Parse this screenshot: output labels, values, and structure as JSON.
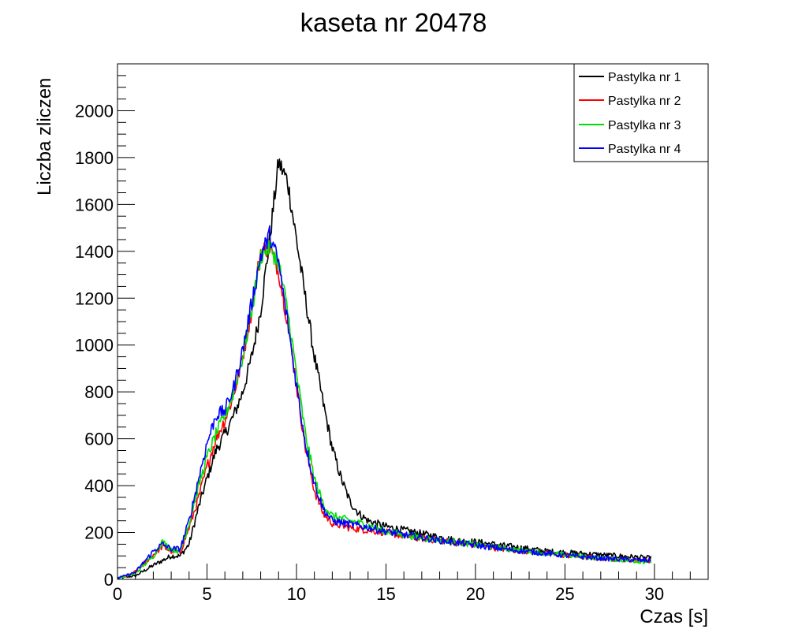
{
  "chart_data": {
    "type": "line",
    "title": "kaseta nr 20478",
    "xlabel": "Czas [s]",
    "ylabel": "Liczba zliczen",
    "xlim": [
      0,
      33
    ],
    "ylim": [
      0,
      2200
    ],
    "x_ticks": [
      0,
      5,
      10,
      15,
      20,
      25,
      30
    ],
    "y_ticks": [
      0,
      200,
      400,
      600,
      800,
      1000,
      1200,
      1400,
      1600,
      1800,
      2000
    ],
    "x_minor_step": 1,
    "y_minor_step": 50,
    "grid": false,
    "legend_position": "top-right",
    "series": [
      {
        "name": "Pastylka nr 1",
        "color": "#000000",
        "points": [
          [
            0,
            5
          ],
          [
            1,
            15
          ],
          [
            2,
            60
          ],
          [
            3,
            100
          ],
          [
            3.5,
            100
          ],
          [
            4,
            150
          ],
          [
            4.5,
            300
          ],
          [
            5,
            430
          ],
          [
            5.5,
            550
          ],
          [
            6,
            620
          ],
          [
            6.5,
            700
          ],
          [
            7,
            800
          ],
          [
            7.5,
            950
          ],
          [
            8,
            1150
          ],
          [
            8.5,
            1450
          ],
          [
            9,
            1780
          ],
          [
            9.5,
            1700
          ],
          [
            10,
            1450
          ],
          [
            10.5,
            1200
          ],
          [
            11,
            950
          ],
          [
            11.5,
            750
          ],
          [
            12,
            560
          ],
          [
            12.5,
            430
          ],
          [
            13,
            330
          ],
          [
            13.5,
            280
          ],
          [
            14,
            250
          ],
          [
            15,
            225
          ],
          [
            16,
            210
          ],
          [
            17,
            195
          ],
          [
            18,
            180
          ],
          [
            19,
            165
          ],
          [
            20,
            160
          ],
          [
            21,
            150
          ],
          [
            22,
            140
          ],
          [
            23,
            130
          ],
          [
            24,
            120
          ],
          [
            25,
            115
          ],
          [
            26,
            110
          ],
          [
            27,
            105
          ],
          [
            28,
            100
          ],
          [
            29,
            95
          ],
          [
            29.8,
            90
          ]
        ]
      },
      {
        "name": "Pastylka nr 2",
        "color": "#ff0000",
        "points": [
          [
            0,
            5
          ],
          [
            0.8,
            20
          ],
          [
            1.5,
            70
          ],
          [
            2.5,
            140
          ],
          [
            3,
            120
          ],
          [
            3.5,
            115
          ],
          [
            4,
            220
          ],
          [
            4.5,
            340
          ],
          [
            5,
            480
          ],
          [
            5.5,
            600
          ],
          [
            6,
            680
          ],
          [
            6.5,
            790
          ],
          [
            7,
            950
          ],
          [
            7.5,
            1150
          ],
          [
            8,
            1400
          ],
          [
            8.5,
            1420
          ],
          [
            9,
            1320
          ],
          [
            9.5,
            1100
          ],
          [
            10,
            830
          ],
          [
            10.5,
            560
          ],
          [
            11,
            380
          ],
          [
            11.5,
            280
          ],
          [
            12,
            240
          ],
          [
            13,
            220
          ],
          [
            14,
            210
          ],
          [
            15,
            200
          ],
          [
            16,
            185
          ],
          [
            17,
            175
          ],
          [
            18,
            165
          ],
          [
            19,
            155
          ],
          [
            20,
            145
          ],
          [
            21,
            135
          ],
          [
            22,
            125
          ],
          [
            23,
            118
          ],
          [
            24,
            110
          ],
          [
            25,
            102
          ],
          [
            26,
            95
          ],
          [
            27,
            90
          ],
          [
            28,
            85
          ],
          [
            29,
            82
          ],
          [
            29.8,
            80
          ]
        ]
      },
      {
        "name": "Pastylka nr 3",
        "color": "#00e000",
        "points": [
          [
            0,
            5
          ],
          [
            1,
            25
          ],
          [
            2,
            100
          ],
          [
            2.5,
            160
          ],
          [
            3,
            130
          ],
          [
            3.5,
            120
          ],
          [
            4,
            240
          ],
          [
            4.5,
            390
          ],
          [
            5,
            520
          ],
          [
            5.5,
            620
          ],
          [
            6,
            700
          ],
          [
            6.5,
            800
          ],
          [
            7,
            950
          ],
          [
            7.5,
            1150
          ],
          [
            8,
            1380
          ],
          [
            8.5,
            1420
          ],
          [
            9,
            1350
          ],
          [
            9.5,
            1150
          ],
          [
            10,
            880
          ],
          [
            10.5,
            620
          ],
          [
            11,
            430
          ],
          [
            11.5,
            320
          ],
          [
            12,
            270
          ],
          [
            13,
            250
          ],
          [
            14,
            230
          ],
          [
            15,
            205
          ],
          [
            16,
            190
          ],
          [
            17,
            178
          ],
          [
            18,
            168
          ],
          [
            19,
            158
          ],
          [
            20,
            148
          ],
          [
            21,
            138
          ],
          [
            22,
            128
          ],
          [
            23,
            120
          ],
          [
            24,
            112
          ],
          [
            25,
            104
          ],
          [
            26,
            97
          ],
          [
            27,
            90
          ],
          [
            28,
            84
          ],
          [
            29,
            78
          ],
          [
            29.8,
            75
          ]
        ]
      },
      {
        "name": "Pastylka nr 4",
        "color": "#0000ff",
        "points": [
          [
            0,
            5
          ],
          [
            1,
            30
          ],
          [
            2,
            120
          ],
          [
            2.5,
            150
          ],
          [
            3,
            130
          ],
          [
            3.5,
            130
          ],
          [
            4,
            250
          ],
          [
            4.5,
            420
          ],
          [
            5,
            580
          ],
          [
            5.5,
            700
          ],
          [
            6,
            720
          ],
          [
            6.5,
            820
          ],
          [
            7,
            980
          ],
          [
            7.5,
            1180
          ],
          [
            8,
            1380
          ],
          [
            8.5,
            1470
          ],
          [
            9,
            1350
          ],
          [
            9.5,
            1100
          ],
          [
            10,
            830
          ],
          [
            10.5,
            580
          ],
          [
            11,
            410
          ],
          [
            11.5,
            300
          ],
          [
            12,
            250
          ],
          [
            13,
            235
          ],
          [
            14,
            222
          ],
          [
            15,
            205
          ],
          [
            16,
            190
          ],
          [
            17,
            178
          ],
          [
            18,
            166
          ],
          [
            19,
            156
          ],
          [
            20,
            146
          ],
          [
            21,
            136
          ],
          [
            22,
            126
          ],
          [
            23,
            118
          ],
          [
            24,
            110
          ],
          [
            25,
            102
          ],
          [
            26,
            96
          ],
          [
            27,
            90
          ],
          [
            28,
            86
          ],
          [
            29,
            82
          ],
          [
            29.8,
            80
          ]
        ]
      }
    ]
  }
}
